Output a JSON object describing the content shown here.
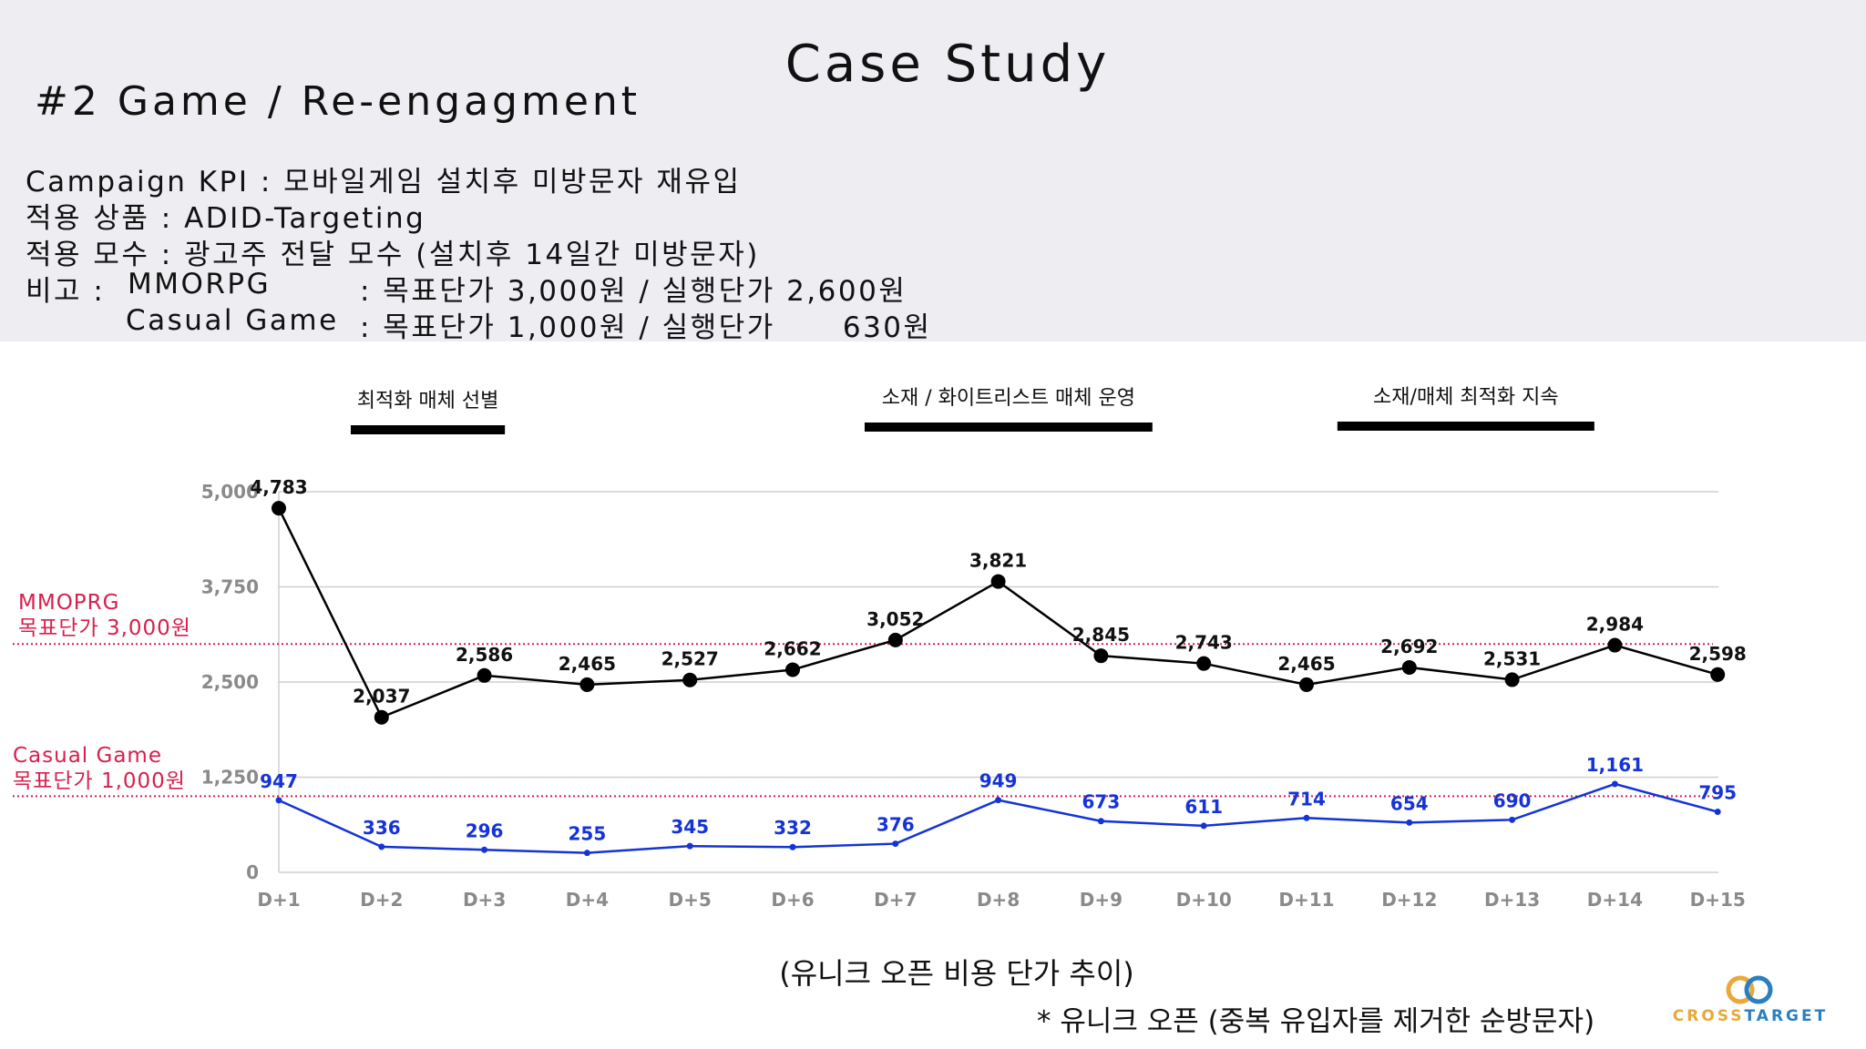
{
  "header": {
    "title": "Case Study",
    "subtitle": "#2 Game / Re-engagment"
  },
  "info": {
    "line1": "Campaign KPI : 모바일게임 설치후 미방문자 재유입",
    "line2": "적용 상품 : ADID-Targeting",
    "line3": "적용 모수 : 광고주 전달 모수 (설치후 14일간 미방문자)",
    "line4_label": "비고 :",
    "line4_name": "MMORPG",
    "line4_value": ": 목표단가 3,000원 / 실행단가 2,600원",
    "line5_name": "Casual Game",
    "line5_value": ": 목표단가 1,000원 / 실행단가      630원"
  },
  "phases": [
    {
      "label": "최적화 매체 선별",
      "from": "D+1.7",
      "to": "D+3.2"
    },
    {
      "label": "소재 / 화이트리스트 매체 운영",
      "from": "D+6.7",
      "to": "D+9.5"
    },
    {
      "label": "소재/매체 최적화 지속",
      "from": "D+11.3",
      "to": "D+13.8"
    }
  ],
  "targets": {
    "mmorpg_name": "MMOPRG",
    "mmorpg_label": "목표단가 3,000원",
    "casual_name": "Casual Game",
    "casual_label": "목표단가 1,000원"
  },
  "colors": {
    "series_black": "#000000",
    "series_blue": "#1533d6",
    "target_red": "#d6204e",
    "panel_bg": "#ededf2"
  },
  "chart_data": {
    "type": "line",
    "x": [
      "D+1",
      "D+2",
      "D+3",
      "D+4",
      "D+5",
      "D+6",
      "D+7",
      "D+8",
      "D+9",
      "D+10",
      "D+11",
      "D+12",
      "D+13",
      "D+14",
      "D+15"
    ],
    "series": [
      {
        "values": [
          4783,
          2037,
          2586,
          2465,
          2527,
          2662,
          3052,
          3821,
          2845,
          2743,
          2465,
          2692,
          2531,
          2984,
          2598
        ],
        "labels": [
          "4,783",
          "2,037",
          "2,586",
          "2,465",
          "2,527",
          "2,662",
          "3,052",
          "3,821",
          "2,845",
          "2,743",
          "2,465",
          "2,692",
          "2,531",
          "2,984",
          "2,598"
        ]
      },
      {
        "values": [
          947,
          336,
          296,
          255,
          345,
          332,
          376,
          949,
          673,
          611,
          714,
          654,
          690,
          1161,
          795
        ],
        "labels": [
          "947",
          "336",
          "296",
          "255",
          "345",
          "332",
          "376",
          "949",
          "673",
          "611",
          "714",
          "654",
          "690",
          "1,161",
          "795"
        ]
      }
    ],
    "yticks": [
      0,
      1250,
      2500,
      3750,
      5000
    ],
    "ytick_labels": [
      "0",
      "1,250",
      "2,500",
      "3,750",
      "5,000"
    ],
    "ylim": [
      0,
      5000
    ],
    "reference_lines": [
      3000,
      1000
    ],
    "grid": "horizontal",
    "title": "",
    "xlabel": "",
    "ylabel": ""
  },
  "caption": "(유니크 오픈 비용 단가 추이)",
  "footnote": "* 유니크 오픈 (중복 유입자를 제거한 순방문자)",
  "logo": {
    "text": "CROSSTARGET"
  }
}
